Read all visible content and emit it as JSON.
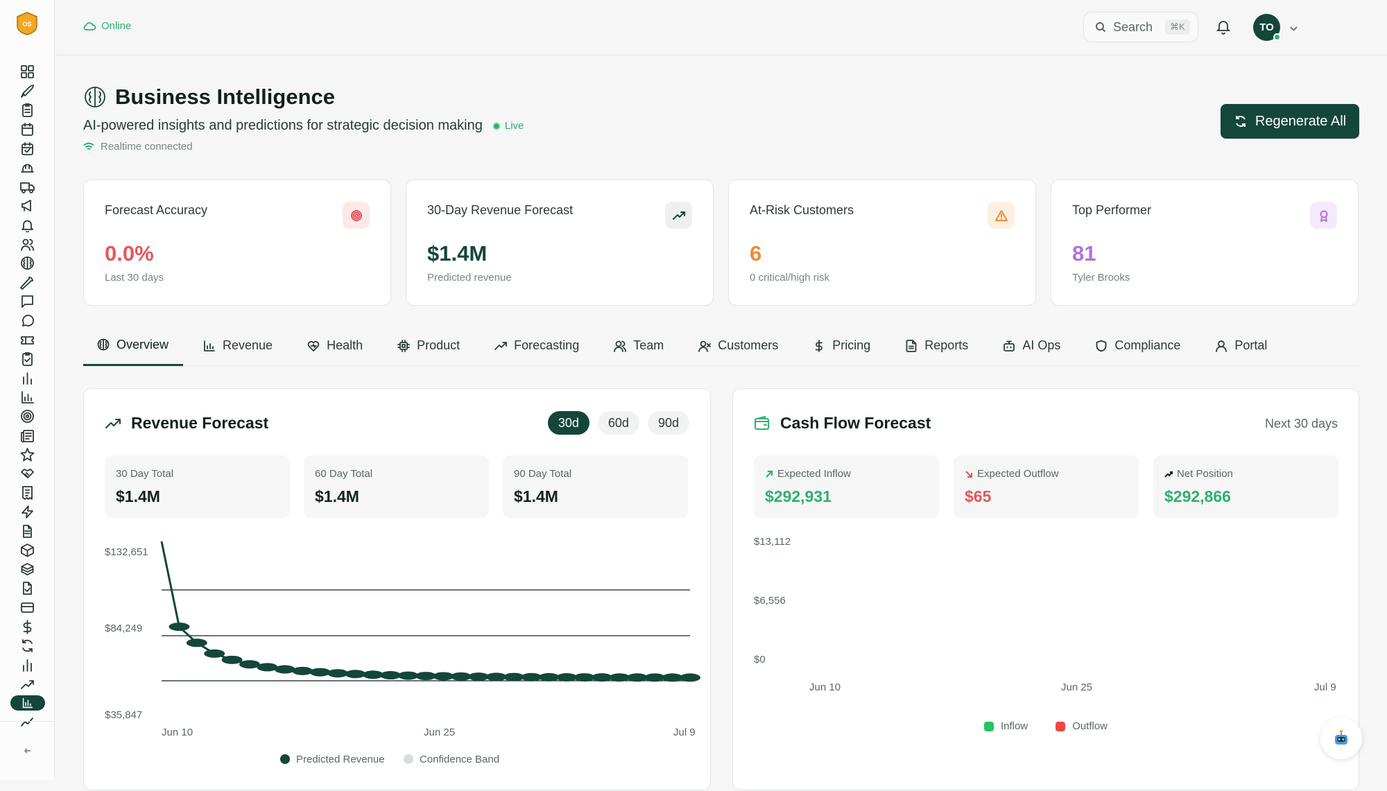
{
  "app": {
    "logo_text": "OS"
  },
  "topbar": {
    "status": "Online",
    "search_label": "Search",
    "search_shortcut": "⌘K",
    "avatar_initials": "TO"
  },
  "header": {
    "title": "Business Intelligence",
    "subtitle": "AI-powered insights and predictions for strategic decision making",
    "live": "Live",
    "realtime": "Realtime connected",
    "regenerate_label": "Regenerate All"
  },
  "kpis": [
    {
      "label": "Forecast Accuracy",
      "value": "0.0%",
      "sub": "Last 30 days",
      "color": "#e5565b",
      "icon": "target-icon"
    },
    {
      "label": "30-Day Revenue Forecast",
      "value": "$1.4M",
      "sub": "Predicted revenue",
      "color": "#14463a",
      "icon": "trending-up-icon"
    },
    {
      "label": "At-Risk Customers",
      "value": "6",
      "sub": "0 critical/high risk",
      "color": "#ef8a37",
      "icon": "warning-icon"
    },
    {
      "label": "Top Performer",
      "value": "81",
      "sub": "Tyler Brooks",
      "color": "#b66fe0",
      "icon": "award-icon"
    }
  ],
  "tabs": [
    {
      "label": "Overview",
      "icon": "brain-icon",
      "active": true
    },
    {
      "label": "Revenue",
      "icon": "bar-chart-icon"
    },
    {
      "label": "Health",
      "icon": "heart-icon"
    },
    {
      "label": "Product",
      "icon": "chip-icon"
    },
    {
      "label": "Forecasting",
      "icon": "trending-up-icon"
    },
    {
      "label": "Team",
      "icon": "users-icon"
    },
    {
      "label": "Customers",
      "icon": "user-x-icon"
    },
    {
      "label": "Pricing",
      "icon": "dollar-icon"
    },
    {
      "label": "Reports",
      "icon": "file-icon"
    },
    {
      "label": "AI Ops",
      "icon": "bot-icon"
    },
    {
      "label": "Compliance",
      "icon": "shield-icon"
    },
    {
      "label": "Portal",
      "icon": "user-icon"
    }
  ],
  "revenue": {
    "title": "Revenue Forecast",
    "ranges": [
      "30d",
      "60d",
      "90d"
    ],
    "active_range": "30d",
    "stats": [
      {
        "label": "30 Day Total",
        "value": "$1.4M"
      },
      {
        "label": "60 Day Total",
        "value": "$1.4M"
      },
      {
        "label": "90 Day Total",
        "value": "$1.4M"
      }
    ],
    "legend": [
      "Predicted Revenue",
      "Confidence Band"
    ]
  },
  "cashflow": {
    "title": "Cash Flow Forecast",
    "period": "Next 30 days",
    "stats": [
      {
        "label": "Expected Inflow",
        "value": "$292,931",
        "color": "#2eb06f"
      },
      {
        "label": "Expected Outflow",
        "value": "$65",
        "color": "#e5565b"
      },
      {
        "label": "Net Position",
        "value": "$292,866",
        "color": "#2eb06f"
      }
    ],
    "legend": [
      {
        "name": "Inflow",
        "color": "#22c55e"
      },
      {
        "name": "Outflow",
        "color": "#ef4444"
      }
    ]
  },
  "chart_data": [
    {
      "type": "line",
      "title": "Revenue Forecast",
      "x_ticks": [
        "Jun 10",
        "Jun 25",
        "Jul 9"
      ],
      "y_ticks": [
        "$132,651",
        "$84,249",
        "$35,847"
      ],
      "ylim": [
        35847,
        132651
      ],
      "series": [
        {
          "name": "Predicted Revenue",
          "values": [
            132651,
            85000,
            76000,
            70000,
            66500,
            64000,
            62400,
            61200,
            60300,
            59600,
            59000,
            58600,
            58200,
            57900,
            57700,
            57500,
            57350,
            57200,
            57100,
            57000,
            56920,
            56860,
            56800,
            56760,
            56720,
            56690,
            56660,
            56640,
            56620,
            56600,
            56590
          ]
        }
      ],
      "grid": true,
      "legend_position": "bottom"
    },
    {
      "type": "bar",
      "title": "Cash Flow Forecast",
      "x_ticks": [
        "Jun 10",
        "Jun 25",
        "Jul 9"
      ],
      "y_ticks": [
        "$13,112",
        "$6,556",
        "$0"
      ],
      "ylim": [
        0,
        13112
      ],
      "series": [
        {
          "name": "Inflow",
          "values": []
        },
        {
          "name": "Outflow",
          "values": []
        }
      ],
      "legend_position": "bottom"
    }
  ]
}
